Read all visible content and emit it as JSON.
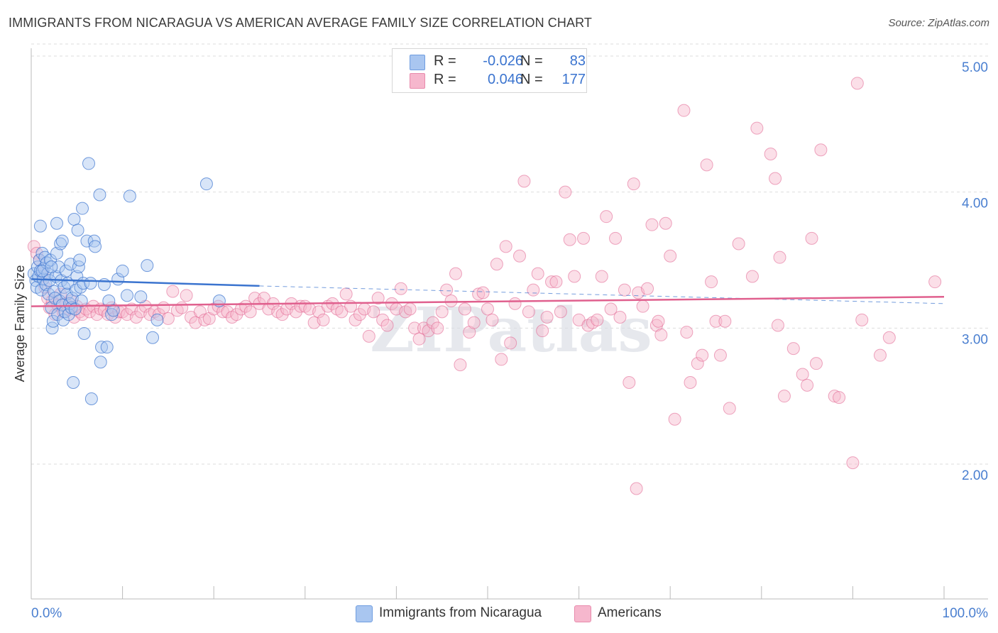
{
  "header": {
    "title": "IMMIGRANTS FROM NICARAGUA VS AMERICAN AVERAGE FAMILY SIZE CORRELATION CHART",
    "source": "Source: ZipAtlas.com"
  },
  "legend": {
    "rows": [
      {
        "r_label": "R =",
        "r_value": "-0.026",
        "n_label": "N =",
        "n_value": "83"
      },
      {
        "r_label": "R =",
        "r_value": "0.046",
        "n_label": "N =",
        "n_value": "177"
      }
    ]
  },
  "bottom_legend": {
    "series1": "Immigrants from Nicaragua",
    "series2": "Americans"
  },
  "watermark": "ZIPatlas",
  "colors": {
    "blue": "#3b74cf",
    "blue_fill": "#a9c6f0",
    "pink": "#e0608e",
    "pink_fill": "#f6b7cd",
    "grid": "#dddddd"
  },
  "chart_data": {
    "type": "scatter",
    "title": "IMMIGRANTS FROM NICARAGUA VS AMERICAN AVERAGE FAMILY SIZE CORRELATION CHART",
    "xlabel": "",
    "ylabel": "Average Family Size",
    "xlim": [
      0,
      100
    ],
    "ylim": [
      1.0,
      5.0
    ],
    "x_tick_labels": [
      "0.0%",
      "100.0%"
    ],
    "y_ticks": [
      2.0,
      3.0,
      4.0,
      5.0
    ],
    "y_tick_labels": [
      "2.00",
      "3.00",
      "4.00",
      "5.00"
    ],
    "grid": true,
    "legend_position": "top-center",
    "series": [
      {
        "name": "Immigrants from Nicaragua",
        "color": "#3b74cf",
        "R": -0.026,
        "N": 83,
        "trend": {
          "x": [
            0,
            25
          ],
          "y": [
            3.36,
            3.31
          ]
        },
        "trend_dashed": {
          "x": [
            25,
            100
          ],
          "y": [
            3.31,
            3.18
          ]
        },
        "points": [
          [
            0.3,
            3.4
          ],
          [
            0.5,
            3.35
          ],
          [
            0.6,
            3.3
          ],
          [
            0.7,
            3.45
          ],
          [
            0.8,
            3.38
          ],
          [
            0.9,
            3.5
          ],
          [
            1.0,
            3.42
          ],
          [
            1.1,
            3.28
          ],
          [
            1.2,
            3.55
          ],
          [
            1.3,
            3.36
          ],
          [
            1.4,
            3.44
          ],
          [
            1.5,
            3.52
          ],
          [
            1.6,
            3.32
          ],
          [
            1.7,
            3.48
          ],
          [
            1.8,
            3.4
          ],
          [
            1.9,
            3.25
          ],
          [
            2.0,
            3.35
          ],
          [
            2.1,
            3.5
          ],
          [
            2.2,
            3.15
          ],
          [
            2.3,
            3.0
          ],
          [
            2.4,
            3.05
          ],
          [
            2.5,
            3.27
          ],
          [
            2.6,
            3.22
          ],
          [
            2.7,
            3.38
          ],
          [
            2.8,
            3.55
          ],
          [
            2.9,
            3.1
          ],
          [
            3.0,
            3.45
          ],
          [
            3.1,
            3.2
          ],
          [
            3.2,
            3.62
          ],
          [
            3.3,
            3.35
          ],
          [
            3.4,
            3.17
          ],
          [
            3.5,
            3.06
          ],
          [
            3.6,
            3.3
          ],
          [
            3.7,
            3.12
          ],
          [
            3.8,
            3.42
          ],
          [
            3.9,
            3.25
          ],
          [
            4.0,
            3.33
          ],
          [
            4.1,
            3.1
          ],
          [
            4.2,
            3.18
          ],
          [
            4.3,
            3.47
          ],
          [
            4.4,
            3.15
          ],
          [
            4.5,
            3.22
          ],
          [
            4.6,
            2.6
          ],
          [
            4.7,
            3.8
          ],
          [
            4.8,
            3.14
          ],
          [
            4.9,
            3.28
          ],
          [
            5.0,
            3.38
          ],
          [
            5.1,
            3.72
          ],
          [
            5.2,
            3.45
          ],
          [
            5.3,
            3.5
          ],
          [
            5.4,
            3.3
          ],
          [
            5.5,
            3.2
          ],
          [
            5.6,
            3.88
          ],
          [
            5.7,
            3.33
          ],
          [
            5.8,
            2.96
          ],
          [
            6.1,
            3.64
          ],
          [
            6.3,
            4.21
          ],
          [
            6.5,
            3.33
          ],
          [
            6.6,
            2.48
          ],
          [
            6.9,
            3.64
          ],
          [
            7.0,
            3.6
          ],
          [
            7.5,
            3.98
          ],
          [
            7.6,
            2.75
          ],
          [
            7.7,
            2.86
          ],
          [
            8.0,
            3.32
          ],
          [
            8.3,
            2.86
          ],
          [
            8.5,
            3.2
          ],
          [
            8.8,
            3.1
          ],
          [
            9.0,
            3.13
          ],
          [
            9.5,
            3.36
          ],
          [
            10.0,
            3.42
          ],
          [
            10.5,
            3.24
          ],
          [
            10.8,
            3.97
          ],
          [
            12.0,
            3.23
          ],
          [
            12.7,
            3.46
          ],
          [
            13.3,
            2.93
          ],
          [
            13.8,
            3.06
          ],
          [
            1.0,
            3.75
          ],
          [
            2.8,
            3.77
          ],
          [
            3.4,
            3.64
          ],
          [
            1.2,
            3.42
          ],
          [
            2.2,
            3.45
          ],
          [
            19.2,
            4.06
          ],
          [
            20.6,
            3.2
          ]
        ]
      },
      {
        "name": "Americans",
        "color": "#e0608e",
        "R": 0.046,
        "N": 177,
        "trend": {
          "x": [
            0,
            100
          ],
          "y": [
            3.16,
            3.23
          ]
        },
        "points": [
          [
            0.3,
            3.6
          ],
          [
            0.6,
            3.55
          ],
          [
            0.9,
            3.5
          ],
          [
            1.2,
            3.4
          ],
          [
            1.5,
            3.3
          ],
          [
            1.8,
            3.22
          ],
          [
            2.0,
            3.15
          ],
          [
            2.3,
            3.2
          ],
          [
            2.6,
            3.1
          ],
          [
            2.9,
            3.17
          ],
          [
            3.2,
            3.25
          ],
          [
            3.5,
            3.12
          ],
          [
            3.8,
            3.18
          ],
          [
            4.1,
            3.14
          ],
          [
            4.4,
            3.2
          ],
          [
            4.7,
            3.08
          ],
          [
            5.0,
            3.16
          ],
          [
            5.3,
            3.12
          ],
          [
            5.6,
            3.1
          ],
          [
            6.0,
            3.14
          ],
          [
            6.4,
            3.12
          ],
          [
            6.8,
            3.16
          ],
          [
            7.2,
            3.1
          ],
          [
            7.6,
            3.14
          ],
          [
            8.0,
            3.13
          ],
          [
            8.4,
            3.1
          ],
          [
            8.8,
            3.15
          ],
          [
            9.2,
            3.08
          ],
          [
            9.6,
            3.12
          ],
          [
            10.0,
            3.12
          ],
          [
            10.5,
            3.1
          ],
          [
            11.0,
            3.14
          ],
          [
            11.5,
            3.08
          ],
          [
            12.0,
            3.12
          ],
          [
            12.5,
            3.16
          ],
          [
            13.0,
            3.1
          ],
          [
            13.5,
            3.12
          ],
          [
            14.0,
            3.1
          ],
          [
            14.5,
            3.15
          ],
          [
            15.0,
            3.07
          ],
          [
            15.5,
            3.27
          ],
          [
            16.0,
            3.13
          ],
          [
            16.5,
            3.15
          ],
          [
            17.0,
            3.24
          ],
          [
            17.5,
            3.08
          ],
          [
            18.0,
            3.04
          ],
          [
            18.5,
            3.12
          ],
          [
            19.0,
            3.06
          ],
          [
            19.5,
            3.07
          ],
          [
            20.0,
            3.14
          ],
          [
            20.5,
            3.16
          ],
          [
            21.0,
            3.12
          ],
          [
            21.5,
            3.12
          ],
          [
            22.0,
            3.08
          ],
          [
            22.5,
            3.1
          ],
          [
            23.0,
            3.14
          ],
          [
            23.5,
            3.16
          ],
          [
            24.0,
            3.12
          ],
          [
            24.5,
            3.22
          ],
          [
            25.0,
            3.18
          ],
          [
            25.5,
            3.22
          ],
          [
            26.0,
            3.14
          ],
          [
            26.5,
            3.18
          ],
          [
            27.0,
            3.12
          ],
          [
            27.5,
            3.1
          ],
          [
            28.0,
            3.14
          ],
          [
            28.5,
            3.18
          ],
          [
            29.0,
            3.12
          ],
          [
            29.5,
            3.16
          ],
          [
            30.0,
            3.16
          ],
          [
            30.5,
            3.14
          ],
          [
            31.0,
            3.04
          ],
          [
            31.5,
            3.12
          ],
          [
            32.0,
            3.06
          ],
          [
            32.5,
            3.16
          ],
          [
            33.0,
            3.18
          ],
          [
            33.5,
            3.14
          ],
          [
            34.0,
            3.12
          ],
          [
            34.5,
            3.25
          ],
          [
            35.0,
            3.16
          ],
          [
            35.5,
            3.06
          ],
          [
            36.0,
            3.1
          ],
          [
            36.5,
            3.14
          ],
          [
            37.0,
            2.94
          ],
          [
            37.5,
            3.12
          ],
          [
            38.0,
            3.22
          ],
          [
            38.5,
            3.06
          ],
          [
            39.0,
            3.02
          ],
          [
            39.5,
            3.18
          ],
          [
            40.0,
            3.14
          ],
          [
            40.5,
            3.29
          ],
          [
            41.0,
            3.12
          ],
          [
            41.5,
            3.14
          ],
          [
            42.0,
            3.0
          ],
          [
            42.5,
            2.92
          ],
          [
            43.0,
            3.0
          ],
          [
            43.5,
            2.98
          ],
          [
            44.0,
            3.04
          ],
          [
            44.5,
            3.0
          ],
          [
            45.0,
            3.12
          ],
          [
            45.5,
            3.28
          ],
          [
            46.0,
            3.2
          ],
          [
            46.5,
            3.4
          ],
          [
            47.0,
            2.73
          ],
          [
            47.5,
            3.14
          ],
          [
            48.0,
            2.97
          ],
          [
            48.5,
            3.04
          ],
          [
            49.0,
            3.25
          ],
          [
            49.5,
            3.26
          ],
          [
            50.0,
            3.14
          ],
          [
            50.5,
            3.06
          ],
          [
            51.0,
            3.47
          ],
          [
            51.5,
            2.77
          ],
          [
            52.0,
            3.6
          ],
          [
            52.5,
            2.89
          ],
          [
            53.0,
            3.18
          ],
          [
            53.5,
            3.53
          ],
          [
            54.0,
            4.08
          ],
          [
            54.5,
            3.12
          ],
          [
            55.0,
            3.28
          ],
          [
            55.5,
            3.4
          ],
          [
            56.0,
            2.98
          ],
          [
            56.5,
            3.08
          ],
          [
            57.0,
            3.34
          ],
          [
            57.5,
            3.34
          ],
          [
            58.0,
            3.12
          ],
          [
            58.5,
            4.0
          ],
          [
            59.0,
            3.65
          ],
          [
            59.5,
            3.38
          ],
          [
            60.0,
            3.06
          ],
          [
            60.5,
            3.66
          ],
          [
            61.0,
            3.02
          ],
          [
            61.5,
            3.04
          ],
          [
            62.0,
            3.06
          ],
          [
            62.5,
            3.38
          ],
          [
            63.0,
            3.82
          ],
          [
            63.5,
            3.14
          ],
          [
            64.0,
            3.66
          ],
          [
            64.5,
            3.08
          ],
          [
            65.0,
            3.28
          ],
          [
            65.5,
            2.6
          ],
          [
            66.0,
            4.06
          ],
          [
            66.5,
            3.26
          ],
          [
            67.0,
            3.16
          ],
          [
            67.5,
            3.29
          ],
          [
            68.0,
            3.76
          ],
          [
            68.5,
            3.02
          ],
          [
            69.0,
            2.95
          ],
          [
            69.5,
            3.77
          ],
          [
            70.0,
            3.53
          ],
          [
            70.5,
            2.33
          ],
          [
            71.5,
            4.6
          ],
          [
            71.8,
            2.97
          ],
          [
            72.2,
            2.6
          ],
          [
            73.0,
            2.74
          ],
          [
            73.5,
            2.8
          ],
          [
            74.0,
            4.2
          ],
          [
            74.5,
            3.34
          ],
          [
            75.0,
            3.05
          ],
          [
            75.5,
            2.8
          ],
          [
            76.0,
            3.05
          ],
          [
            76.5,
            2.41
          ],
          [
            77.5,
            3.62
          ],
          [
            79.0,
            3.38
          ],
          [
            79.5,
            4.47
          ],
          [
            81.0,
            4.28
          ],
          [
            81.5,
            4.1
          ],
          [
            81.8,
            3.02
          ],
          [
            82.5,
            2.5
          ],
          [
            83.5,
            2.85
          ],
          [
            84.5,
            2.66
          ],
          [
            85.0,
            2.58
          ],
          [
            85.5,
            3.66
          ],
          [
            86.5,
            4.31
          ],
          [
            88.0,
            2.5
          ],
          [
            88.5,
            2.49
          ],
          [
            90.0,
            2.01
          ],
          [
            90.5,
            4.8
          ],
          [
            91.0,
            3.06
          ],
          [
            93.0,
            2.8
          ],
          [
            94.0,
            2.93
          ],
          [
            99.0,
            3.34
          ],
          [
            66.3,
            1.82
          ],
          [
            86.0,
            2.74
          ],
          [
            82.0,
            3.52
          ],
          [
            68.7,
            3.05
          ]
        ]
      }
    ]
  }
}
